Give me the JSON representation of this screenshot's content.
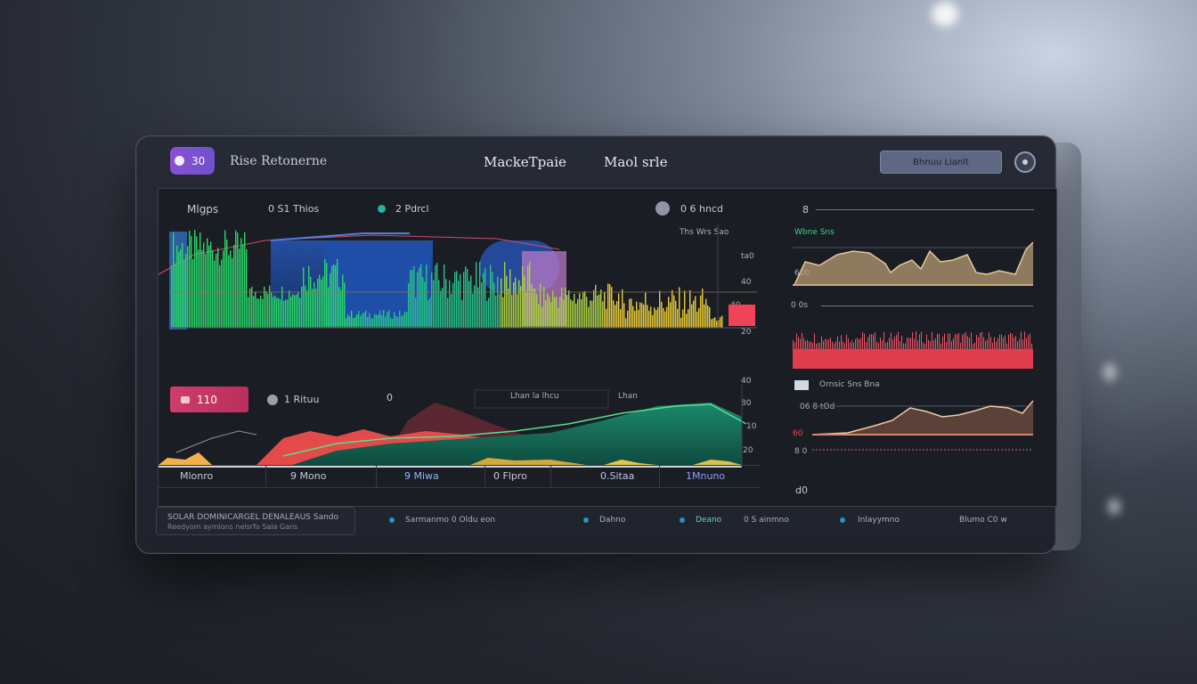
{
  "header": {
    "logo_text": "30",
    "brand": "Rise Retonerne",
    "title_1": "MackeTpaie",
    "title_2": "Maol srle",
    "search_placeholder": "Bhnuu Lianlt",
    "avatar_icon": "user-circle-icon"
  },
  "main_chart": {
    "legend_a": "Mlgps",
    "legend_b": "0 S1 Thios",
    "legend_c": "2 Pdrcl",
    "legend_d": "0 6 hncd",
    "right_header": "Ths Wrs Sao",
    "y_ticks": [
      "ta0",
      "40",
      "40",
      "20",
      "40",
      "80",
      "10",
      "20"
    ]
  },
  "second_chart": {
    "badge": "110",
    "legend": "1 Rituu",
    "marker": "0",
    "center_label": "Lhan la lhcu",
    "right_label": "Lhan",
    "x_labels": [
      "Mlonro",
      "9 Mono",
      "9 Miwa",
      "0 Flpro",
      "0.Sitaa",
      "1Mnuno"
    ]
  },
  "right_panel": {
    "top_label": "8",
    "mini1_label": "Wbne Sns",
    "mini1_y": "600",
    "mini2_label": "0 0s",
    "mini3_label": "Ornsic Sns Bna",
    "mini3_y1": "06 8 tOd",
    "mini3_y2": "60",
    "mini3_y3": "8 0",
    "bottom_label": "d0"
  },
  "footer": {
    "box_line1": "SOLAR DOMINICARGEL DENALEAUS Sando",
    "box_line2": "Reedyom aymlons nelsrfo Sala Gans",
    "items": [
      "Sarmanmo 0 Oldu eon",
      "Dahno",
      "Deano",
      "0 S ainmno",
      "Inlayymno",
      "Blumo C0 w"
    ]
  },
  "colors": {
    "accent_purple": "#8a4fd6",
    "accent_pink": "#cf3d6b",
    "accent_blue": "#2e5db8",
    "accent_green": "#27d36f",
    "accent_yellow": "#e2d23a",
    "accent_red": "#ef4458",
    "accent_gold": "#c9a875",
    "accent_teal": "#1d8f74"
  }
}
